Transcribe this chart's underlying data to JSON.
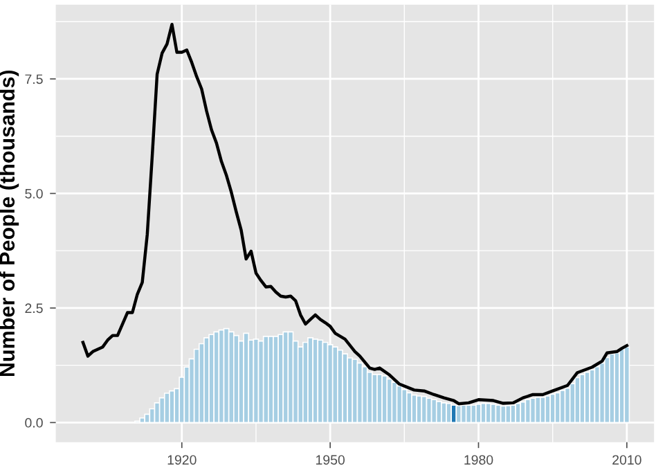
{
  "chart_data": {
    "type": "bar",
    "ylabel": "Number of People (thousands)",
    "xlim": [
      1894.5,
      2015.5
    ],
    "xticks": [
      1920,
      1950,
      1980,
      2010
    ],
    "ylim": [
      -0.43,
      9.12
    ],
    "yticks": [
      {
        "value": 0,
        "label": "0.0"
      },
      {
        "value": 2.5,
        "label": "2.5"
      },
      {
        "value": 5,
        "label": "5.0"
      },
      {
        "value": 7.5,
        "label": "7.5"
      }
    ],
    "grid": true,
    "series": [
      {
        "color": "#a6cee3",
        "x": [
          1911,
          1912,
          1913,
          1914,
          1915,
          1916,
          1917,
          1918,
          1919,
          1920,
          1921,
          1922,
          1923,
          1924,
          1925,
          1926,
          1927,
          1928,
          1929,
          1930,
          1931,
          1932,
          1933,
          1934,
          1935,
          1936,
          1937,
          1938,
          1939,
          1940,
          1941,
          1942,
          1943,
          1944,
          1945,
          1946,
          1947,
          1948,
          1949,
          1950,
          1951,
          1952,
          1953,
          1954,
          1955,
          1956,
          1957,
          1958,
          1959,
          1960,
          1961,
          1962,
          1963,
          1964,
          1965,
          1966,
          1967,
          1968,
          1969,
          1970,
          1971,
          1972,
          1973,
          1974,
          1975,
          1976,
          1977,
          1978,
          1979,
          1980,
          1981,
          1982,
          1983,
          1984,
          1985,
          1986,
          1987,
          1988,
          1989,
          1990,
          1991,
          1992,
          1993,
          1994,
          1995,
          1996,
          1997,
          1998,
          1999,
          2000,
          2001,
          2002,
          2003,
          2004,
          2005,
          2006,
          2007,
          2008,
          2009,
          2010
        ],
        "values": [
          0.03,
          0.1,
          0.18,
          0.3,
          0.43,
          0.54,
          0.64,
          0.69,
          0.74,
          0.99,
          1.21,
          1.39,
          1.6,
          1.72,
          1.85,
          1.92,
          1.98,
          2.02,
          2.05,
          1.98,
          1.9,
          1.78,
          1.95,
          1.8,
          1.82,
          1.78,
          1.88,
          1.88,
          1.88,
          1.92,
          1.98,
          1.98,
          1.78,
          1.65,
          1.75,
          1.85,
          1.82,
          1.8,
          1.75,
          1.7,
          1.65,
          1.58,
          1.5,
          1.41,
          1.38,
          1.3,
          1.22,
          1.1,
          1.05,
          1.05,
          1.02,
          0.95,
          0.88,
          0.8,
          0.72,
          0.65,
          0.6,
          0.58,
          0.57,
          0.53,
          0.5,
          0.46,
          0.43,
          0.42,
          0.38,
          0.37,
          0.38,
          0.38,
          0.38,
          0.4,
          0.42,
          0.42,
          0.4,
          0.38,
          0.36,
          0.37,
          0.38,
          0.42,
          0.45,
          0.5,
          0.53,
          0.55,
          0.55,
          0.58,
          0.62,
          0.65,
          0.7,
          0.75,
          0.85,
          0.98,
          1.05,
          1.1,
          1.15,
          1.22,
          1.3,
          1.42,
          1.5,
          1.52,
          1.6,
          1.65
        ],
        "colors": [
          "#a6cee3",
          "#a6cee3",
          "#a6cee3",
          "#a6cee3",
          "#a6cee3",
          "#a6cee3",
          "#a6cee3",
          "#a6cee3",
          "#a6cee3",
          "#a6cee3",
          "#a6cee3",
          "#a6cee3",
          "#a6cee3",
          "#a6cee3",
          "#a6cee3",
          "#a6cee3",
          "#a6cee3",
          "#a6cee3",
          "#a6cee3",
          "#a6cee3",
          "#a6cee3",
          "#a6cee3",
          "#a6cee3",
          "#a6cee3",
          "#a6cee3",
          "#a6cee3",
          "#a6cee3",
          "#a6cee3",
          "#a6cee3",
          "#a6cee3",
          "#a6cee3",
          "#a6cee3",
          "#a6cee3",
          "#a6cee3",
          "#a6cee3",
          "#a6cee3",
          "#a6cee3",
          "#a6cee3",
          "#a6cee3",
          "#a6cee3",
          "#a6cee3",
          "#a6cee3",
          "#a6cee3",
          "#a6cee3",
          "#a6cee3",
          "#a6cee3",
          "#a6cee3",
          "#a6cee3",
          "#a6cee3",
          "#a6cee3",
          "#a6cee3",
          "#a6cee3",
          "#a6cee3",
          "#a6cee3",
          "#a6cee3",
          "#a6cee3",
          "#a6cee3",
          "#a6cee3",
          "#a6cee3",
          "#a6cee3",
          "#a6cee3",
          "#a6cee3",
          "#a6cee3",
          "#a6cee3",
          "#1f78b4",
          "#a6cee3",
          "#a6cee3",
          "#a6cee3",
          "#a6cee3",
          "#a6cee3",
          "#a6cee3",
          "#a6cee3",
          "#a6cee3",
          "#a6cee3",
          "#a6cee3",
          "#a6cee3",
          "#a6cee3",
          "#a6cee3",
          "#a6cee3",
          "#a6cee3",
          "#a6cee3",
          "#a6cee3",
          "#a6cee3",
          "#a6cee3",
          "#a6cee3",
          "#a6cee3",
          "#a6cee3",
          "#a6cee3",
          "#a6cee3",
          "#a6cee3",
          "#a6cee3",
          "#a6cee3",
          "#a6cee3",
          "#a6cee3",
          "#a6cee3",
          "#a6cee3",
          "#a6cee3",
          "#a6cee3",
          "#a6cee3",
          "#a6cee3"
        ]
      },
      {
        "type": "line",
        "color": "#000000",
        "x": [
          1900,
          1901,
          1902,
          1903,
          1904,
          1905,
          1906,
          1907,
          1908,
          1909,
          1910,
          1911,
          1912,
          1913,
          1914,
          1915,
          1916,
          1917,
          1918,
          1919,
          1920,
          1921,
          1922,
          1923,
          1924,
          1925,
          1926,
          1927,
          1928,
          1929,
          1930,
          1931,
          1932,
          1933,
          1934,
          1935,
          1936,
          1937,
          1938,
          1939,
          1940,
          1941,
          1942,
          1943,
          1944,
          1945,
          1946,
          1947,
          1948,
          1949,
          1950,
          1951,
          1953,
          1955,
          1956,
          1958,
          1959,
          1960,
          1962,
          1964,
          1967,
          1969,
          1971,
          1973,
          1975,
          1976,
          1978,
          1980,
          1983,
          1985,
          1987,
          1989,
          1991,
          1993,
          1995,
          1998,
          2000,
          2003,
          2005,
          2006,
          2008,
          2009,
          2010
        ],
        "values": [
          1.75,
          1.45,
          1.55,
          1.6,
          1.65,
          1.8,
          1.9,
          1.9,
          2.15,
          2.4,
          2.4,
          2.8,
          3.06,
          4.1,
          5.8,
          7.6,
          8.06,
          8.26,
          8.69,
          8.08,
          8.08,
          8.13,
          7.86,
          7.55,
          7.28,
          6.8,
          6.39,
          6.1,
          5.7,
          5.4,
          5.03,
          4.6,
          4.2,
          3.57,
          3.74,
          3.26,
          3.1,
          2.96,
          2.97,
          2.85,
          2.76,
          2.74,
          2.76,
          2.66,
          2.35,
          2.15,
          2.25,
          2.35,
          2.25,
          2.18,
          2.1,
          1.95,
          1.82,
          1.55,
          1.45,
          1.19,
          1.16,
          1.19,
          1.04,
          0.84,
          0.71,
          0.69,
          0.61,
          0.54,
          0.48,
          0.41,
          0.43,
          0.5,
          0.48,
          0.42,
          0.43,
          0.54,
          0.61,
          0.61,
          0.69,
          0.81,
          1.09,
          1.21,
          1.34,
          1.52,
          1.55,
          1.62,
          1.68
        ]
      }
    ]
  }
}
